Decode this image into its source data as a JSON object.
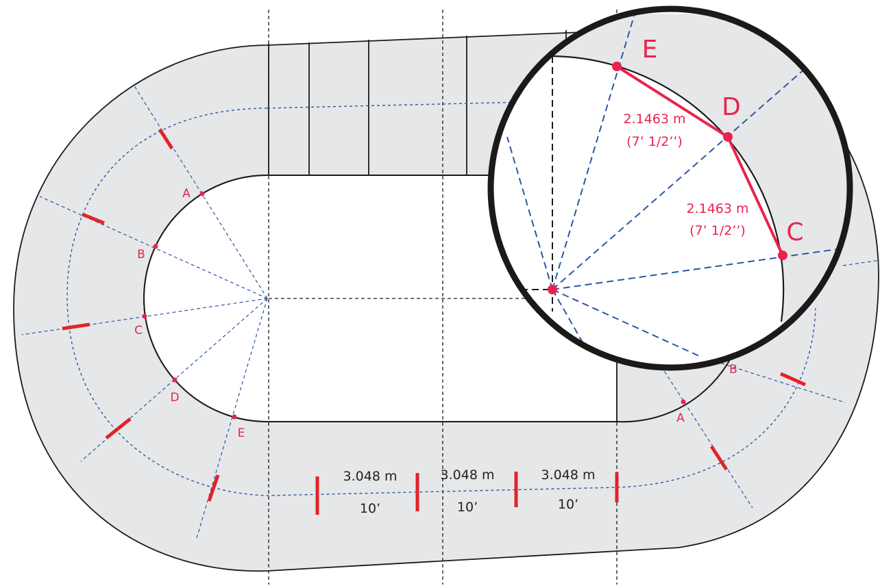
{
  "colors": {
    "track_fill": "#e6e7e8",
    "outline": "#1a1a1a",
    "guide": "#2b56a6",
    "accent": "#e8234e",
    "tick": "#e0242a",
    "dim_text": "#222222"
  },
  "left_points": [
    {
      "label": "A"
    },
    {
      "label": "B"
    },
    {
      "label": "C"
    },
    {
      "label": "D"
    },
    {
      "label": "E"
    }
  ],
  "right_points": [
    {
      "label": "A"
    },
    {
      "label": "B"
    }
  ],
  "segments": [
    {
      "metric": "3.048 m",
      "imperial": "10’"
    },
    {
      "metric": "3.048 m",
      "imperial": "10’"
    },
    {
      "metric": "3.048 m",
      "imperial": "10’"
    }
  ],
  "zoom": {
    "points": [
      {
        "label": "E"
      },
      {
        "label": "D"
      },
      {
        "label": "C"
      }
    ],
    "chords": [
      {
        "metric": "2.1463 m",
        "imperial": "(7’ 1/2’’)"
      },
      {
        "metric": "2.1463 m",
        "imperial": "(7’ 1/2’’)"
      }
    ]
  }
}
